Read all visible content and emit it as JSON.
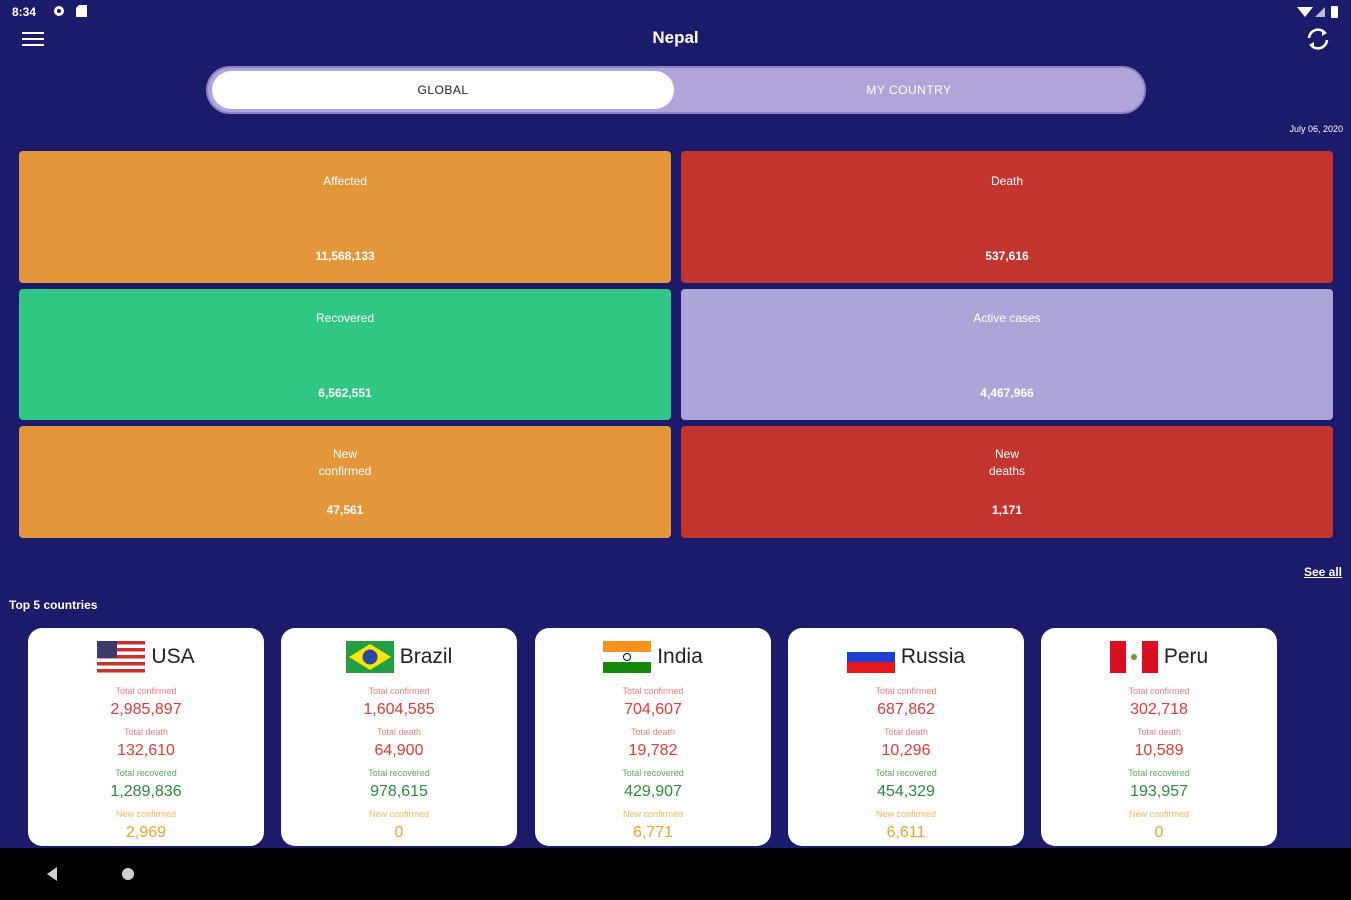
{
  "status": {
    "time": "8:34"
  },
  "appbar": {
    "title": "Nepal"
  },
  "tabs": [
    {
      "label": "GLOBAL",
      "active": true
    },
    {
      "label": "MY COUNTRY",
      "active": false
    }
  ],
  "date": "July 06, 2020",
  "stats": {
    "affected": {
      "label": "Affected",
      "value": "11,568,133"
    },
    "death": {
      "label": "Death",
      "value": "537,616"
    },
    "recovered": {
      "label": "Recovered",
      "value": "6,562,551"
    },
    "active": {
      "label": "Active cases",
      "value": "4,467,966"
    },
    "new_confirmed": {
      "label_line1": "New",
      "label_line2": "confirmed",
      "value": "47,561"
    },
    "new_deaths": {
      "label_line1": "New",
      "label_line2": "deaths",
      "value": "1,171"
    }
  },
  "see_all": "See all",
  "top5_title": "Top 5 countries",
  "field_labels": {
    "total_confirmed": "Total confirmed",
    "total_death": "Total death",
    "total_recovered": "Total recovered",
    "new_confirmed": "New confirmed"
  },
  "countries": [
    {
      "name": "USA",
      "flag": "usa-flag",
      "total_confirmed": "2,985,897",
      "total_death": "132,610",
      "total_recovered": "1,289,836",
      "new_confirmed": "2,969"
    },
    {
      "name": "Brazil",
      "flag": "brazil-flag",
      "total_confirmed": "1,604,585",
      "total_death": "64,900",
      "total_recovered": "978,615",
      "new_confirmed": "0"
    },
    {
      "name": "India",
      "flag": "india-flag",
      "total_confirmed": "704,607",
      "total_death": "19,782",
      "total_recovered": "429,907",
      "new_confirmed": "6,771"
    },
    {
      "name": "Russia",
      "flag": "russia-flag",
      "total_confirmed": "687,862",
      "total_death": "10,296",
      "total_recovered": "454,329",
      "new_confirmed": "6,611"
    },
    {
      "name": "Peru",
      "flag": "peru-flag",
      "total_confirmed": "302,718",
      "total_death": "10,589",
      "total_recovered": "193,957",
      "new_confirmed": "0"
    }
  ],
  "colors": {
    "background": "#1c1a6b",
    "orange": "#e4973a",
    "red": "#c43530",
    "green": "#30c785",
    "lavender": "#ada4d8"
  }
}
